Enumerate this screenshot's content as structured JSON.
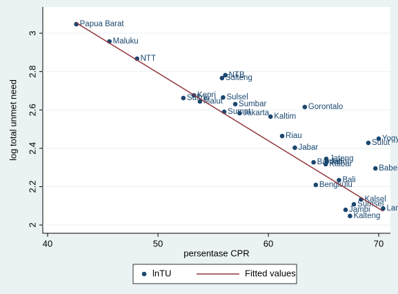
{
  "chart_data": {
    "type": "scatter",
    "x_label": "persentase CPR",
    "y_label": "log total unmet need",
    "xlim": [
      39.56,
      71.06
    ],
    "ylim": [
      1.957,
      3.137
    ],
    "xticks": [
      40,
      50,
      60,
      70
    ],
    "yticks": [
      2,
      2.2,
      2.4,
      2.6,
      2.8,
      3
    ],
    "grid": true,
    "legend": "bottom",
    "series": [
      {
        "name": "lnTU",
        "type": "scatter",
        "color": "#1a476f",
        "labels": [
          "Papua Barat",
          "Maluku",
          "NTT",
          "NTB",
          "Sulteng",
          "Kepri",
          "Sultra",
          "Malut",
          "Sulsel",
          "Sumbar",
          "Sumut",
          "Jakarta",
          "Kaltim",
          "Gorontalo",
          "Riau",
          "Jabar",
          "Yogya",
          "Sulut",
          "Jateng",
          "Banten",
          "Jatim",
          "Kalbar",
          "Babel",
          "Bali",
          "Bengkulu",
          "Kalsel",
          "Sumsel",
          "Lampung",
          "Jambi",
          "Kalteng"
        ],
        "x": [
          42.6,
          45.6,
          48.1,
          56.1,
          55.8,
          53.25,
          52.3,
          53.8,
          55.9,
          57.0,
          56.0,
          57.4,
          60.2,
          63.3,
          61.25,
          62.4,
          70.0,
          69.06,
          65.25,
          64.1,
          65.3,
          65.2,
          69.7,
          66.4,
          64.3,
          68.4,
          67.75,
          70.4,
          67.0,
          67.4
        ],
        "values": [
          3.047,
          2.957,
          2.867,
          2.781,
          2.766,
          2.676,
          2.662,
          2.644,
          2.665,
          2.63,
          2.59,
          2.583,
          2.565,
          2.615,
          2.464,
          2.403,
          2.45,
          2.428,
          2.345,
          2.327,
          2.33,
          2.317,
          2.295,
          2.234,
          2.209,
          2.133,
          2.108,
          2.086,
          2.079,
          2.047
        ]
      },
      {
        "name": "Fitted values",
        "type": "line",
        "color": "#90353b",
        "x": [
          42.6,
          70.4
        ],
        "values": [
          3.054,
          2.072
        ]
      }
    ]
  }
}
